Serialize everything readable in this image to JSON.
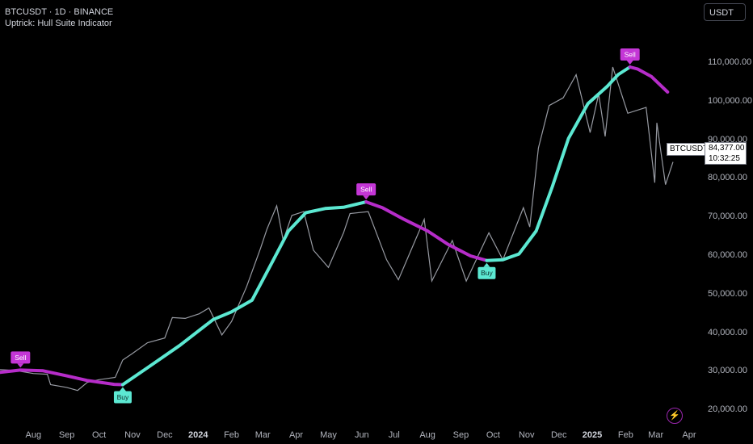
{
  "header": {
    "symbol_line": "BTCUSDT · 1D · BINANCE",
    "indicator_line": "Uptrick: Hull Suite Indicator"
  },
  "currency_button": "USDT",
  "y_axis": {
    "ticks": [
      "110,000.00",
      "100,000.00",
      "90,000.00",
      "80,000.00",
      "70,000.00",
      "60,000.00",
      "50,000.00",
      "40,000.00",
      "30,000.00",
      "20,000.00"
    ],
    "values": [
      110000,
      100000,
      90000,
      80000,
      70000,
      60000,
      50000,
      40000,
      30000,
      20000
    ]
  },
  "x_axis": {
    "ticks": [
      "Aug",
      "Sep",
      "Oct",
      "Nov",
      "Dec",
      "2024",
      "Feb",
      "Mar",
      "Apr",
      "May",
      "Jun",
      "Jul",
      "Aug",
      "Sep",
      "Oct",
      "Nov",
      "Dec",
      "2025",
      "Feb",
      "Mar",
      "Apr"
    ],
    "dates": [
      "2023-08-01",
      "2023-09-01",
      "2023-10-01",
      "2023-11-01",
      "2023-12-01",
      "2024-01-01",
      "2024-02-01",
      "2024-03-01",
      "2024-04-01",
      "2024-05-01",
      "2024-06-01",
      "2024-07-01",
      "2024-08-01",
      "2024-09-01",
      "2024-10-01",
      "2024-11-01",
      "2024-12-01",
      "2025-01-01",
      "2025-02-01",
      "2025-03-01",
      "2025-04-01"
    ],
    "year_ticks": [
      "2024",
      "2025"
    ]
  },
  "last_price": {
    "symbol": "BTCUSDT",
    "price": "84,377.00",
    "countdown": "10:32:25"
  },
  "chart_data": {
    "type": "line",
    "x_range": [
      "2023-07-01",
      "2025-04-10"
    ],
    "ylim": [
      17500,
      118000
    ],
    "grid": false,
    "series": [
      {
        "type": "price",
        "color": "#b2b5be",
        "points": [
          [
            "2023-07-01",
            30500
          ],
          [
            "2023-07-15",
            30300
          ],
          [
            "2023-08-01",
            29500
          ],
          [
            "2023-08-14",
            29300
          ],
          [
            "2023-08-17",
            26600
          ],
          [
            "2023-09-01",
            25900
          ],
          [
            "2023-09-11",
            25100
          ],
          [
            "2023-09-20",
            27200
          ],
          [
            "2023-10-01",
            27900
          ],
          [
            "2023-10-16",
            28500
          ],
          [
            "2023-10-23",
            33000
          ],
          [
            "2023-11-01",
            34700
          ],
          [
            "2023-11-15",
            37500
          ],
          [
            "2023-12-01",
            38700
          ],
          [
            "2023-12-08",
            44000
          ],
          [
            "2023-12-20",
            43800
          ],
          [
            "2024-01-02",
            45000
          ],
          [
            "2024-01-11",
            46500
          ],
          [
            "2024-01-23",
            39500
          ],
          [
            "2024-02-01",
            43000
          ],
          [
            "2024-02-15",
            52000
          ],
          [
            "2024-02-28",
            62000
          ],
          [
            "2024-03-05",
            67000
          ],
          [
            "2024-03-14",
            73000
          ],
          [
            "2024-03-20",
            64000
          ],
          [
            "2024-03-28",
            70500
          ],
          [
            "2024-04-08",
            71500
          ],
          [
            "2024-04-17",
            61500
          ],
          [
            "2024-05-01",
            57000
          ],
          [
            "2024-05-15",
            66000
          ],
          [
            "2024-05-21",
            71000
          ],
          [
            "2024-06-07",
            71500
          ],
          [
            "2024-06-24",
            59000
          ],
          [
            "2024-07-05",
            53800
          ],
          [
            "2024-07-29",
            69500
          ],
          [
            "2024-08-05",
            53500
          ],
          [
            "2024-08-24",
            64000
          ],
          [
            "2024-09-06",
            53500
          ],
          [
            "2024-09-27",
            66000
          ],
          [
            "2024-10-10",
            59000
          ],
          [
            "2024-10-29",
            72500
          ],
          [
            "2024-11-04",
            67500
          ],
          [
            "2024-11-12",
            88000
          ],
          [
            "2024-11-22",
            99000
          ],
          [
            "2024-12-05",
            101000
          ],
          [
            "2024-12-17",
            107000
          ],
          [
            "2024-12-30",
            92000
          ],
          [
            "2025-01-07",
            102000
          ],
          [
            "2025-01-13",
            91000
          ],
          [
            "2025-01-20",
            109000
          ],
          [
            "2025-02-03",
            97000
          ],
          [
            "2025-02-20",
            98500
          ],
          [
            "2025-02-28",
            79000
          ],
          [
            "2025-03-02",
            94500
          ],
          [
            "2025-03-10",
            78500
          ],
          [
            "2025-03-17",
            84377
          ]
        ]
      },
      {
        "type": "hull",
        "points": [
          [
            "2023-07-01",
            29800
          ],
          [
            "2023-07-20",
            30400
          ],
          [
            "2023-08-10",
            30200
          ],
          [
            "2023-09-01",
            28900
          ],
          [
            "2023-09-20",
            27700
          ],
          [
            "2023-10-15",
            26700
          ],
          [
            "2023-10-23",
            26600
          ],
          [
            "2023-11-15",
            31000
          ],
          [
            "2023-12-15",
            36800
          ],
          [
            "2024-01-15",
            43500
          ],
          [
            "2024-02-01",
            45500
          ],
          [
            "2024-02-20",
            48500
          ],
          [
            "2024-03-10",
            58500
          ],
          [
            "2024-03-25",
            66500
          ],
          [
            "2024-04-10",
            71200
          ],
          [
            "2024-04-28",
            72300
          ],
          [
            "2024-05-15",
            72600
          ],
          [
            "2024-06-05",
            74000
          ],
          [
            "2024-06-20",
            72500
          ],
          [
            "2024-07-10",
            69500
          ],
          [
            "2024-08-01",
            66500
          ],
          [
            "2024-08-20",
            63000
          ],
          [
            "2024-09-10",
            60000
          ],
          [
            "2024-09-25",
            58800
          ],
          [
            "2024-10-10",
            59000
          ],
          [
            "2024-10-25",
            60500
          ],
          [
            "2024-11-10",
            66500
          ],
          [
            "2024-11-25",
            78000
          ],
          [
            "2024-12-10",
            90500
          ],
          [
            "2024-12-28",
            99500
          ],
          [
            "2025-01-15",
            104000
          ],
          [
            "2025-01-25",
            107000
          ],
          [
            "2025-02-05",
            109000
          ],
          [
            "2025-02-12",
            108500
          ],
          [
            "2025-02-25",
            106500
          ],
          [
            "2025-03-12",
            102500
          ]
        ],
        "segments": [
          {
            "from": "2023-07-01",
            "to": "2023-10-23",
            "trend": "down",
            "color": "#b62cc9"
          },
          {
            "from": "2023-10-23",
            "to": "2024-06-05",
            "trend": "up",
            "color": "#5ce8d2"
          },
          {
            "from": "2024-06-05",
            "to": "2024-09-25",
            "trend": "down",
            "color": "#b62cc9"
          },
          {
            "from": "2024-09-25",
            "to": "2025-02-05",
            "trend": "up",
            "color": "#5ce8d2"
          },
          {
            "from": "2025-02-05",
            "to": "2025-03-12",
            "trend": "down",
            "color": "#b62cc9"
          }
        ]
      }
    ],
    "signals": [
      {
        "label": "Sell",
        "date": "2023-07-20",
        "value": 30400,
        "kind": "sell",
        "color": "#c436d6"
      },
      {
        "label": "Buy",
        "date": "2023-10-23",
        "value": 26600,
        "kind": "buy",
        "color": "#5ce8d2"
      },
      {
        "label": "Sell",
        "date": "2024-06-05",
        "value": 74000,
        "kind": "sell",
        "color": "#c436d6"
      },
      {
        "label": "Buy",
        "date": "2024-09-25",
        "value": 58800,
        "kind": "buy",
        "color": "#5ce8d2"
      },
      {
        "label": "Sell",
        "date": "2025-02-05",
        "value": 109000,
        "kind": "sell",
        "color": "#c436d6"
      }
    ]
  }
}
